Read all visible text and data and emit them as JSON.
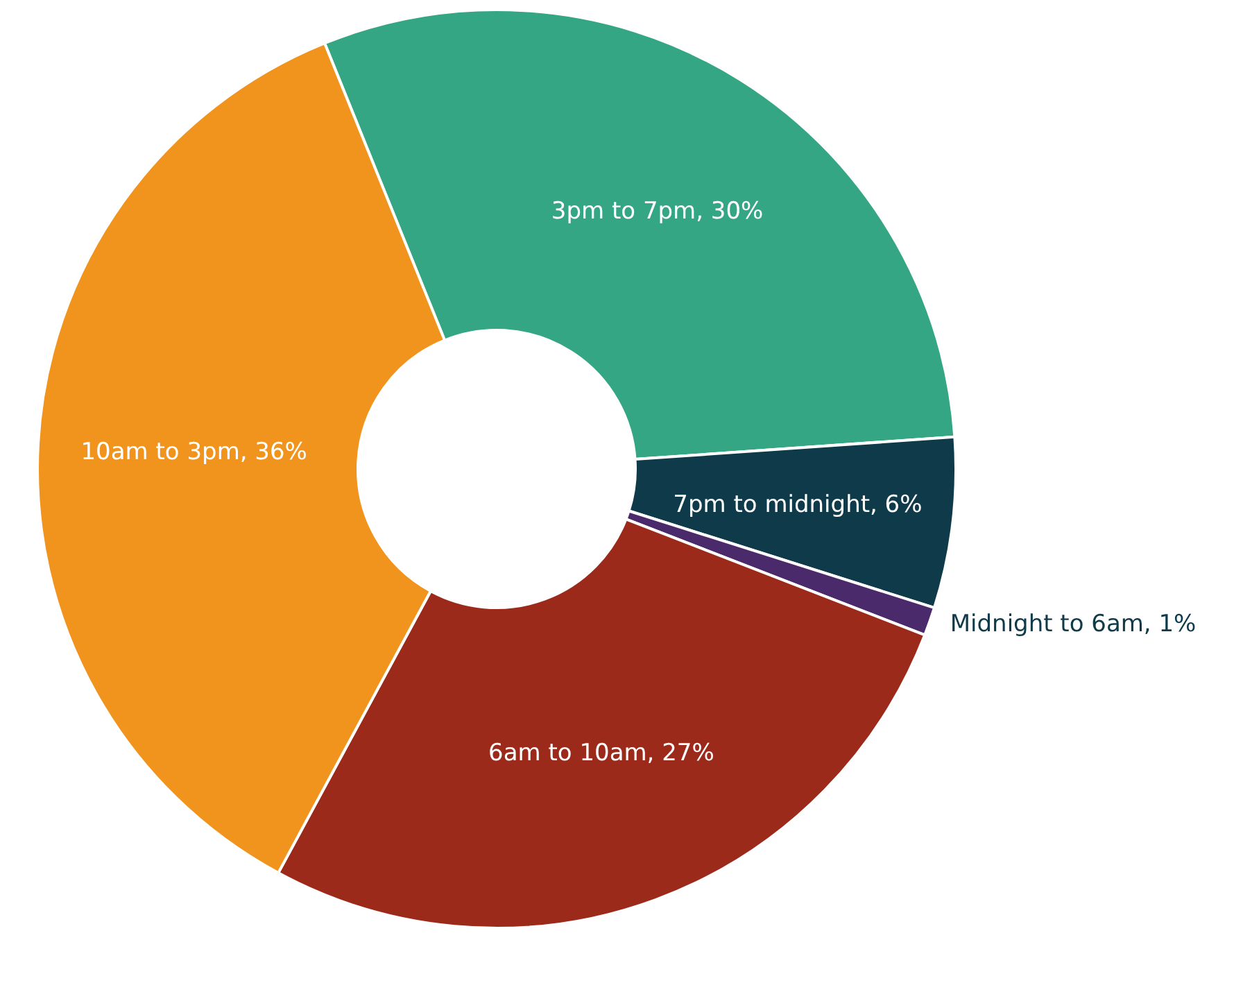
{
  "chart_data": {
    "type": "donut",
    "categories": [
      "3pm to 7pm",
      "7pm to midnight",
      "Midnight to 6am",
      "6am to 10am",
      "10am to 3pm"
    ],
    "values": [
      30,
      6,
      1,
      27,
      36
    ],
    "colors": [
      "#34a683",
      "#0f3a4a",
      "#4b2a6b",
      "#9c2a1a",
      "#f0941e"
    ],
    "value_labels": [
      ", 30%",
      ", 6%",
      ", 1%",
      ", 27%",
      ", 36%"
    ],
    "legend": false
  }
}
